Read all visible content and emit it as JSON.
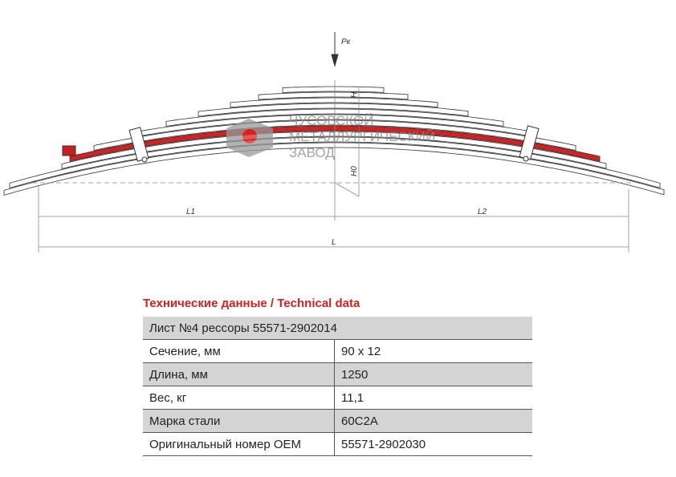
{
  "drawing": {
    "load_label": "Pк",
    "h_label": "H",
    "h0_label": "H0",
    "l1_label": "L1",
    "l2_label": "L2",
    "l_label": "L",
    "logo": [
      "ЧУСОВСКОЙ",
      "МЕТАЛЛУРГИЧЕСКИЙ",
      "ЗАВОД"
    ]
  },
  "table": {
    "title": "Технические данные / Technical data",
    "header": "Лист №4 рессоры 55571-2902014",
    "rows": [
      [
        "Сечение, мм",
        "90 х 12"
      ],
      [
        "Длина, мм",
        "1250"
      ],
      [
        "Вес, кг",
        "11,1"
      ],
      [
        "Марка стали",
        "60С2А"
      ],
      [
        "Оригинальный номер OEM",
        "55571-2902030"
      ]
    ]
  }
}
